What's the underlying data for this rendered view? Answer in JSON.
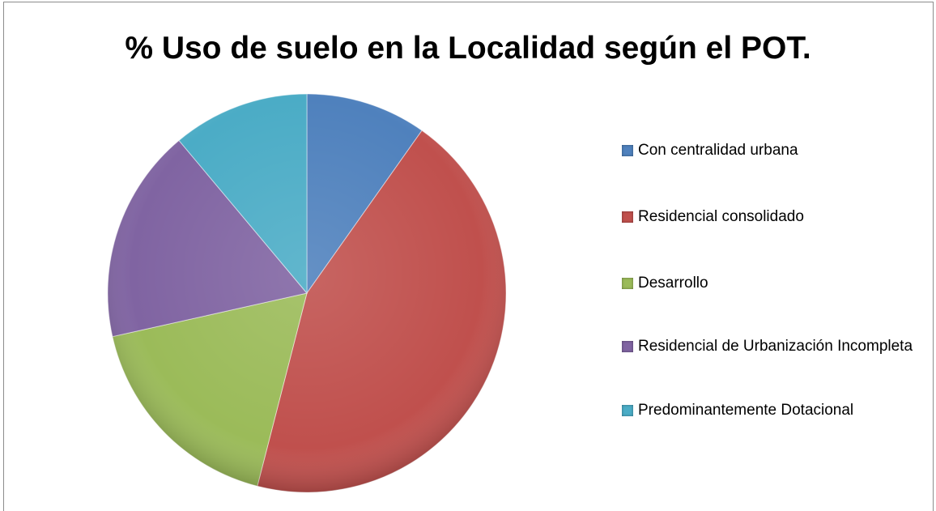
{
  "chart_data": {
    "type": "pie",
    "title": "% Uso de suelo en la Localidad según el POT.",
    "categories": [
      "Con centralidad urbana",
      "Residencial consolidado",
      "Desarrollo",
      "Residencial de Urbanización Incompleta",
      "Predominantemente Dotacional"
    ],
    "values": [
      9.8,
      44.2,
      17.5,
      17.4,
      11.1
    ],
    "colors": [
      "#4f81bd",
      "#c0504d",
      "#9bbb59",
      "#8064a2",
      "#4bacc6"
    ],
    "legend": "right"
  }
}
